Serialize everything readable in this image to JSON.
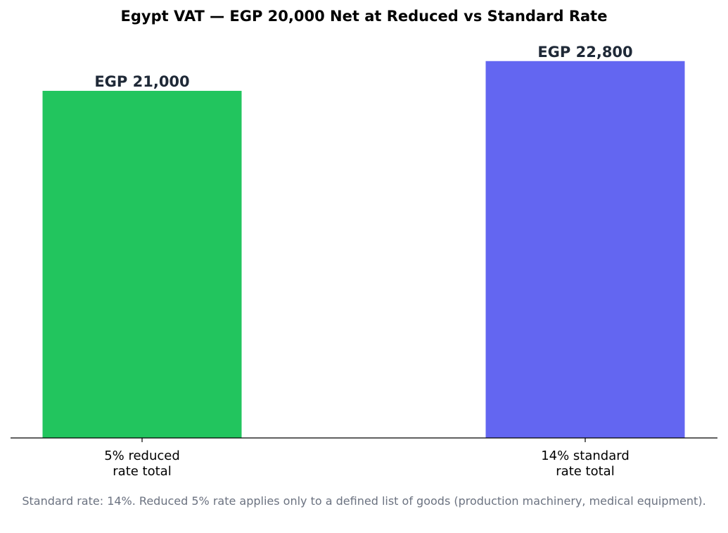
{
  "colors": {
    "reduced": "#22c55e",
    "standard": "#6366f1",
    "value_label": "#1f2937",
    "axis": "#000000",
    "footnote": "#6b7280"
  },
  "chart_data": {
    "type": "bar",
    "title": "Egypt VAT — EGP 20,000 Net at Reduced vs Standard Rate",
    "xlabel": "",
    "ylabel": "",
    "ylim": [
      0,
      23940
    ],
    "grid": false,
    "categories": [
      [
        "5% reduced",
        "rate total"
      ],
      [
        "14% standard",
        "rate total"
      ]
    ],
    "values": [
      21000,
      22800
    ],
    "value_labels": [
      "EGP 21,000",
      "EGP 22,800"
    ],
    "bar_colors": [
      "#22c55e",
      "#6366f1"
    ],
    "footnote": "Standard rate: 14%. Reduced 5% rate applies only to a defined list of goods (production machinery, medical equipment)."
  }
}
